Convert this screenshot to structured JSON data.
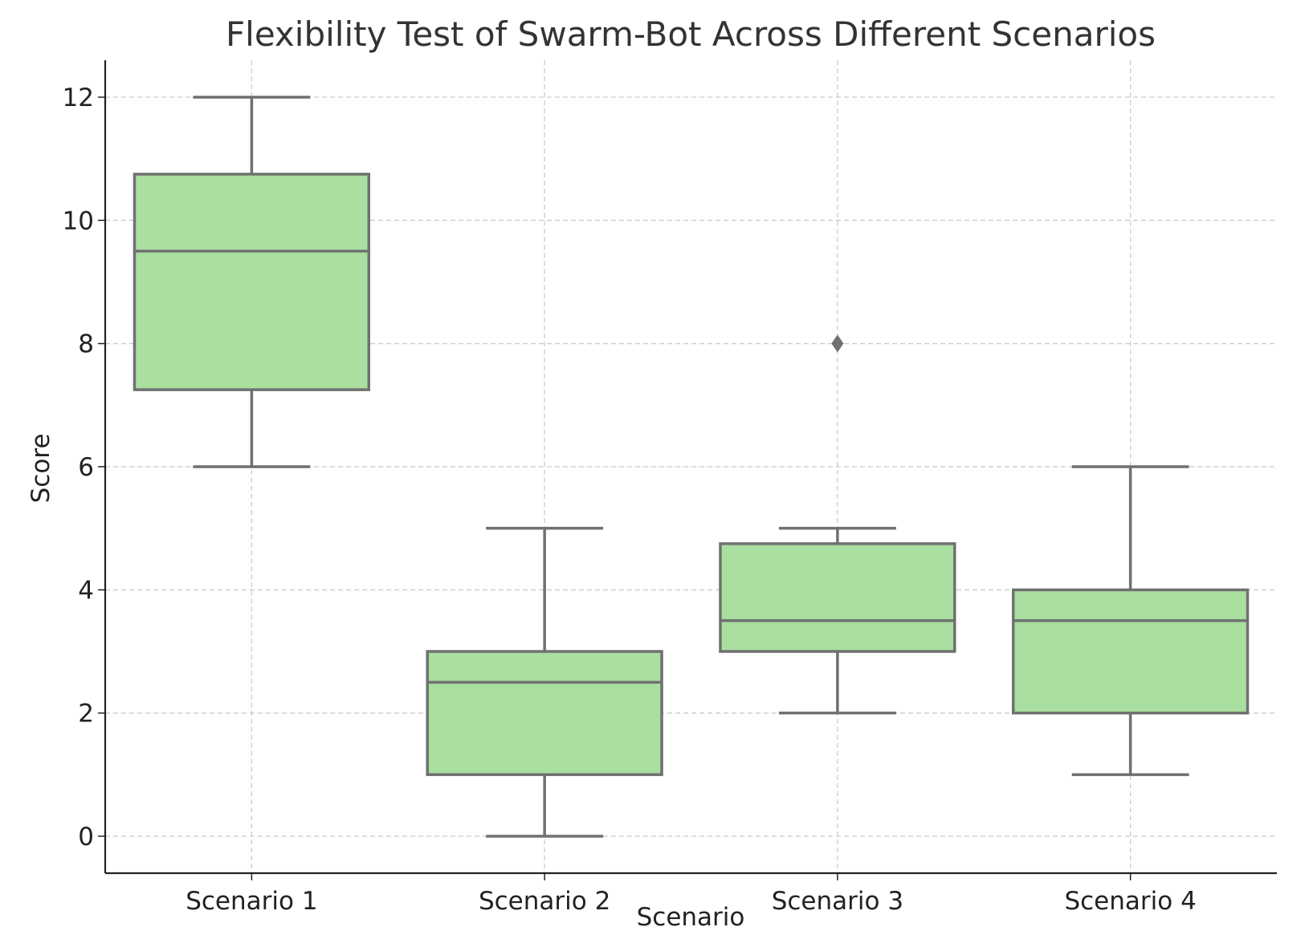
{
  "chart_data": {
    "type": "box",
    "title": "Flexibility Test of Swarm-Bot Across Different Scenarios",
    "xlabel": "Scenario",
    "ylabel": "Score",
    "ylim": [
      -0.6,
      12.6
    ],
    "yticks": [
      0,
      2,
      4,
      6,
      8,
      10,
      12
    ],
    "grid": true,
    "legend": "none",
    "categories": [
      "Scenario 1",
      "Scenario 2",
      "Scenario 3",
      "Scenario 4"
    ],
    "series": [
      {
        "category": "Scenario 1",
        "whisker_low": 6,
        "q1": 7.25,
        "median": 9.5,
        "q3": 10.75,
        "whisker_high": 12,
        "outliers": []
      },
      {
        "category": "Scenario 2",
        "whisker_low": 0,
        "q1": 1,
        "median": 2.5,
        "q3": 3,
        "whisker_high": 5,
        "outliers": []
      },
      {
        "category": "Scenario 3",
        "whisker_low": 2,
        "q1": 3,
        "median": 3.5,
        "q3": 4.75,
        "whisker_high": 5,
        "outliers": [
          8
        ]
      },
      {
        "category": "Scenario 4",
        "whisker_low": 1,
        "q1": 2,
        "median": 3.5,
        "q3": 4,
        "whisker_high": 6,
        "outliers": []
      }
    ],
    "colors": {
      "box_fill": "#a9df9f",
      "box_edge": "#707070",
      "grid": "#cccccc",
      "axis": "#222222"
    }
  }
}
